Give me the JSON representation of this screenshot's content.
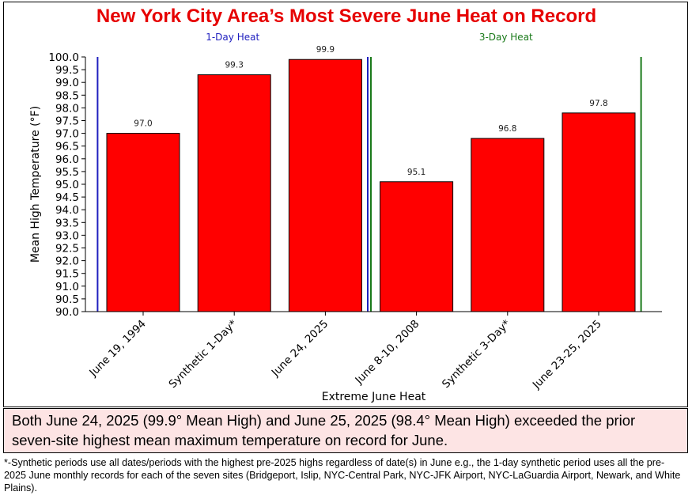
{
  "chart_data": {
    "type": "bar",
    "title": "New York City Area’s Most Severe June Heat on Record",
    "xlabel": "Extreme June Heat",
    "ylabel": "Mean High Temperature (°F)",
    "ylim": [
      90.0,
      100.0
    ],
    "ytick_step": 0.5,
    "categories": [
      "June 19, 1994",
      "Synthetic 1-Day*",
      "June 24, 2025",
      "June 8-10, 2008",
      "Synthetic 3-Day*",
      "June 23-25, 2025"
    ],
    "values": [
      97.0,
      99.3,
      99.9,
      95.1,
      96.8,
      97.8
    ],
    "bar_color": "#ff0000",
    "groups": [
      {
        "label": "1-Day Heat",
        "color": "#1f1fbf",
        "start_index": 0,
        "end_index": 2
      },
      {
        "label": "3-Day Heat",
        "color": "#1a7a1a",
        "start_index": 3,
        "end_index": 5
      }
    ],
    "grid": false
  },
  "note": "Both June 24, 2025 (99.9° Mean High) and June 25, 2025 (98.4° Mean High) exceeded the prior seven-site highest mean maximum temperature on record for June.",
  "footnote": "*-Synthetic periods use all dates/periods with the highest pre-2025 highs regardless of date(s) in June e.g., the 1-day synthetic  period uses all the pre-2025 June monthly records for each of the seven sites (Bridgeport, Islip, NYC-Central Park, NYC-JFK Airport, NYC-LaGuardia Airport, Newark, and White Plains)."
}
